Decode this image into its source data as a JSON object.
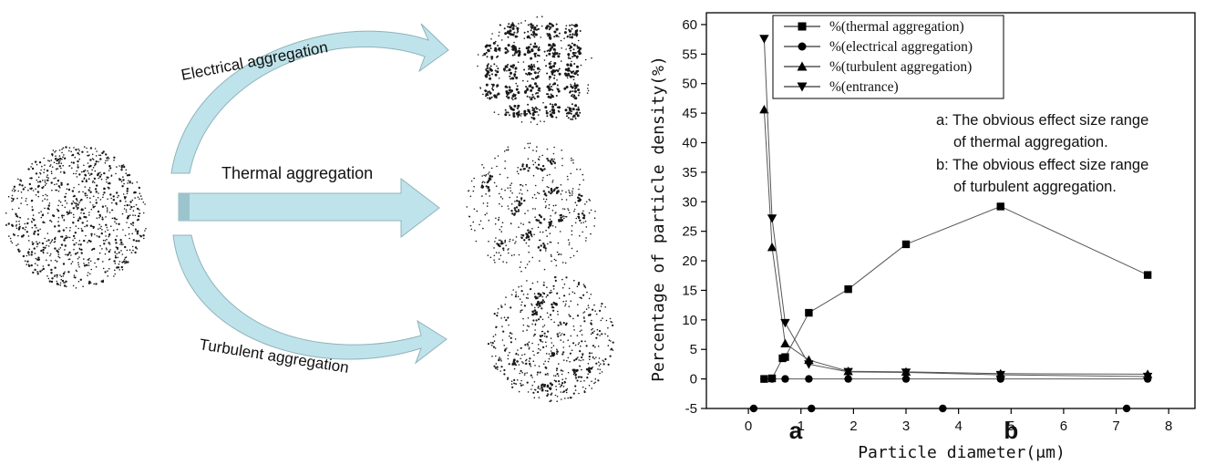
{
  "diagram": {
    "arrows": {
      "electrical": "Electrical aggregation",
      "thermal": "Thermal aggregation",
      "turbulent": "Turbulent aggregation"
    },
    "colors": {
      "arrow_fill": "#bfe3ea",
      "arrow_stroke": "#8fb3bb",
      "dots": "#111111"
    }
  },
  "chart_data": {
    "type": "line",
    "xlabel": "Particle diameter(μm)",
    "ylabel": "Percentage of particle density(%)",
    "xlim": [
      -0.8,
      8.5
    ],
    "ylim": [
      -5,
      62
    ],
    "xticks": [
      0,
      1,
      2,
      3,
      4,
      5,
      6,
      7,
      8
    ],
    "yticks": [
      -5,
      0,
      5,
      10,
      15,
      20,
      25,
      30,
      35,
      40,
      45,
      50,
      55,
      60
    ],
    "grid": false,
    "legend_position": "top-left",
    "series": [
      {
        "name": "%(thermal aggregation)",
        "marker": "square",
        "x": [
          0.3,
          0.45,
          0.65,
          0.7,
          1.15,
          1.9,
          3.0,
          4.8,
          7.6
        ],
        "y": [
          0,
          0.1,
          3.5,
          3.7,
          11.2,
          15.2,
          22.8,
          29.2,
          17.6
        ]
      },
      {
        "name": "%(electrical aggregation)",
        "marker": "circle",
        "x": [
          0.3,
          0.45,
          0.7,
          1.15,
          1.9,
          3.0,
          4.8,
          7.6
        ],
        "y": [
          0,
          0,
          0,
          0,
          0,
          0,
          0,
          0
        ]
      },
      {
        "name": "%(turbulent aggregation)",
        "marker": "triangle-up",
        "x": [
          0.3,
          0.45,
          0.7,
          1.15,
          1.9,
          3.0,
          4.8,
          7.6
        ],
        "y": [
          45.6,
          22.3,
          6.0,
          3.2,
          1.3,
          1.2,
          0.9,
          0.8
        ]
      },
      {
        "name": "%(entrance)",
        "marker": "triangle-down",
        "x": [
          0.3,
          0.45,
          0.7,
          1.15,
          1.9,
          3.0,
          4.8,
          7.6
        ],
        "y": [
          57.6,
          27.2,
          9.5,
          2.5,
          1.2,
          1.1,
          0.7,
          0.4
        ]
      }
    ],
    "baseline_points": {
      "x": [
        0.1,
        1.2,
        3.7,
        7.2
      ],
      "y": [
        -5,
        -5,
        -5,
        -5
      ]
    },
    "annotations": {
      "a_text_1": "a: The obvious effect size range",
      "a_text_2": "of thermal aggregation.",
      "b_text_1": "b: The obvious effect size range",
      "b_text_2": "of turbulent aggregation.",
      "marker_a": "a",
      "marker_b": "b",
      "marker_a_x": 0.9,
      "marker_b_x": 5.0
    }
  }
}
